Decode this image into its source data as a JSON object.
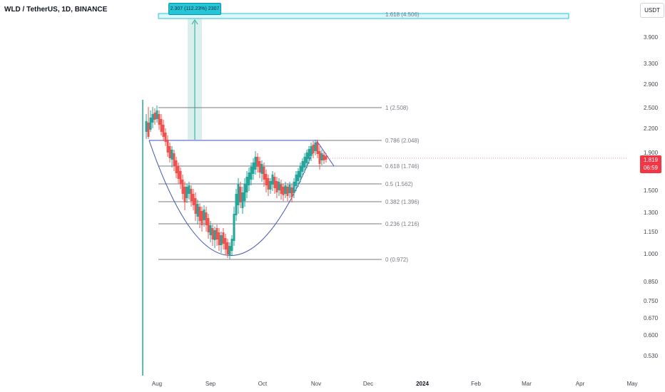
{
  "header": {
    "symbol_title": "WLD / TetherUS, 1D, BINANCE"
  },
  "price_axis": {
    "currency": "USDT",
    "labels": [
      "3.900",
      "3.300",
      "2.900",
      "2.500",
      "2.200",
      "1.900",
      "1.500",
      "1.300",
      "1.150",
      "1.000",
      "0.850",
      "0.750",
      "0.670",
      "0.600",
      "0.530"
    ],
    "last_price": "1.819",
    "countdown": "06:59"
  },
  "time_axis": {
    "labels": [
      "Aug",
      "Sep",
      "Oct",
      "Nov",
      "Dec",
      "2024",
      "Feb",
      "Mar",
      "Apr",
      "May"
    ],
    "bold_label": "2024"
  },
  "fib_levels": [
    {
      "label": "1.618 (4.506)"
    },
    {
      "label": "1 (2.508)"
    },
    {
      "label": "0.786 (2.048)"
    },
    {
      "label": "0.618 (1.746)"
    },
    {
      "label": "0.5 (1.562)"
    },
    {
      "label": "0.382 (1.396)"
    },
    {
      "label": "0.236 (1.216)"
    },
    {
      "label": "0 (0.972)"
    }
  ],
  "measure_tool": {
    "label": "2.307 (112.23%) 2307"
  },
  "colors": {
    "up_candle": "#26a69a",
    "down_candle": "#ef5350",
    "fib_line": "#787b86",
    "pattern_line": "#3f51b5",
    "target_zone": "#26c6da",
    "last_price_bg": "#f23645"
  }
}
